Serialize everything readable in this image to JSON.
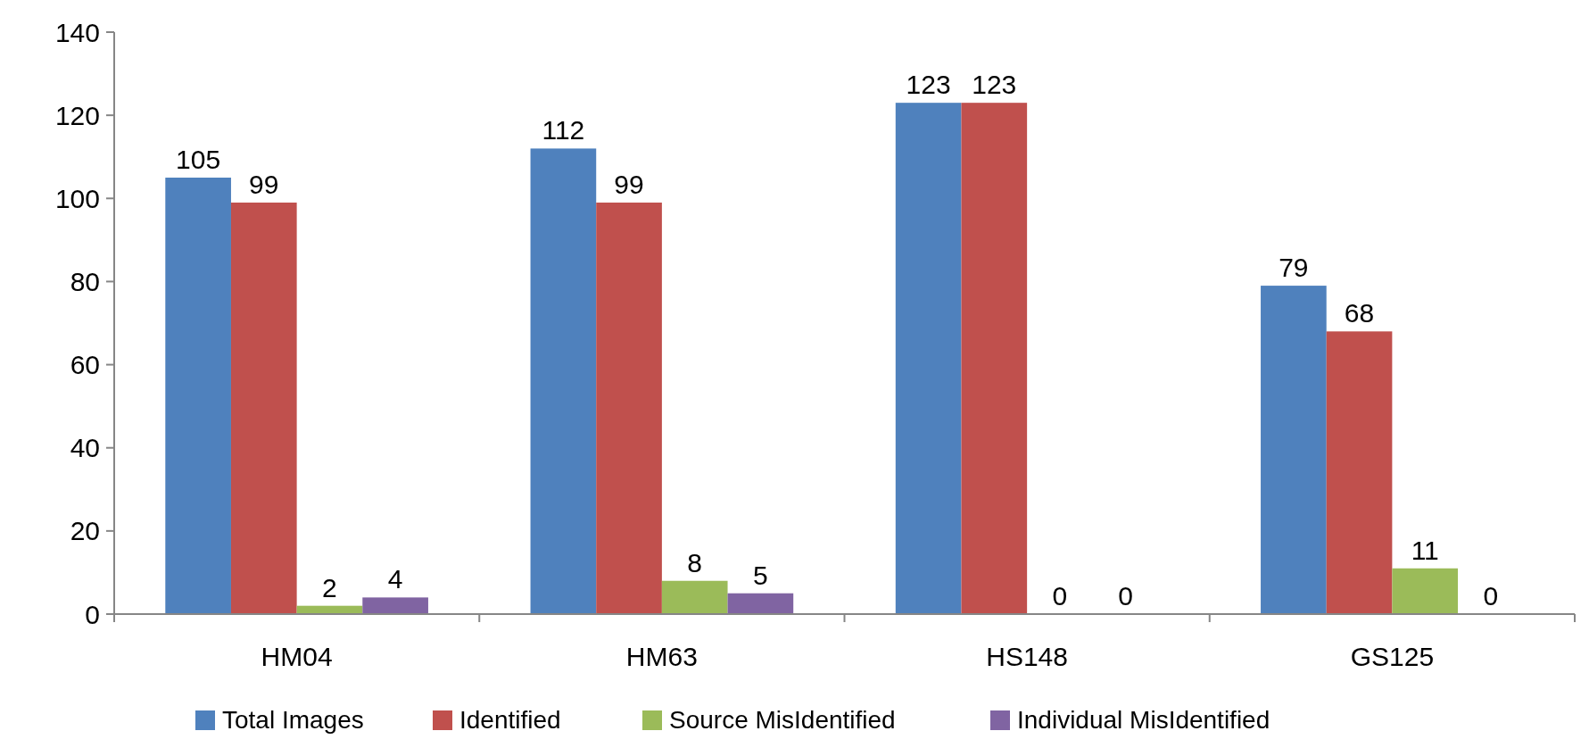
{
  "chart_data": {
    "type": "bar",
    "categories": [
      "HM04",
      "HM63",
      "HS148",
      "GS125"
    ],
    "series": [
      {
        "name": "Total Images",
        "color": "#4f81bd",
        "values": [
          105,
          112,
          123,
          79
        ]
      },
      {
        "name": "Identified",
        "color": "#c0504d",
        "values": [
          99,
          99,
          123,
          68
        ]
      },
      {
        "name": "Source MisIdentified",
        "color": "#9bbb59",
        "values": [
          2,
          8,
          0,
          11
        ]
      },
      {
        "name": "Individual MisIdentified",
        "color": "#8064a2",
        "values": [
          4,
          5,
          0,
          0
        ]
      }
    ],
    "ylim": [
      0,
      140
    ],
    "yticks": [
      0,
      20,
      40,
      60,
      80,
      100,
      120,
      140
    ],
    "grid": false,
    "legend": "bottom",
    "data_labels": true
  }
}
